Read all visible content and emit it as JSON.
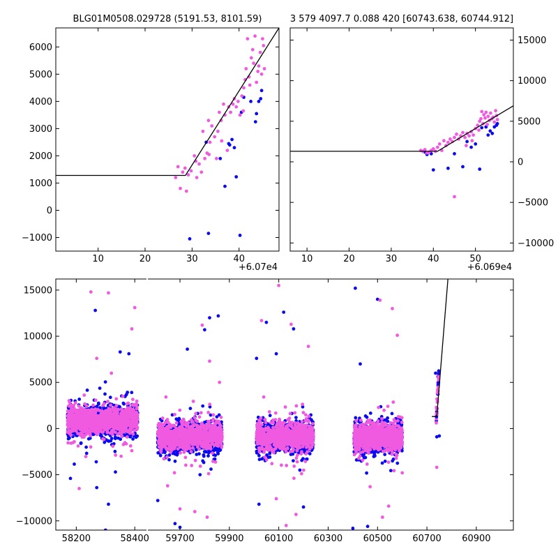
{
  "colors": {
    "band_blue": "#0b0bf0",
    "band_pink": "#f05ae0",
    "model_line": "#000000"
  },
  "chart_data": [
    {
      "id": "zoom1",
      "type": "scatter",
      "title": "BLG01M0508.029728 (5191.53, 8101.59)",
      "x_offset_label": "+6.07e4",
      "xlim": [
        1,
        48.5
      ],
      "ylim": [
        -1500,
        6700
      ],
      "xticks": [
        10,
        20,
        30,
        40
      ],
      "yticks": [
        -1000,
        0,
        1000,
        2000,
        3000,
        4000,
        5000,
        6000
      ],
      "ytick_side": "left",
      "model": [
        [
          1,
          1280
        ],
        [
          28.6,
          1280
        ],
        [
          48.5,
          6700
        ]
      ],
      "series": [
        {
          "name": "blue",
          "points": [
            [
              29.5,
              -1050
            ],
            [
              33.5,
              -850
            ],
            [
              40.2,
              -920
            ],
            [
              33,
              2500
            ],
            [
              36,
              1900
            ],
            [
              37,
              880
            ],
            [
              38,
              2400
            ],
            [
              39,
              2300
            ],
            [
              39.4,
              1230
            ],
            [
              40.5,
              3600
            ],
            [
              41,
              4150
            ],
            [
              42.5,
              4000
            ],
            [
              43.5,
              3250
            ],
            [
              43.7,
              3550
            ],
            [
              44.2,
              4000
            ],
            [
              44.6,
              4100
            ],
            [
              44.8,
              4400
            ],
            [
              38.5,
              2600
            ],
            [
              37.8,
              2450
            ]
          ]
        },
        {
          "name": "pink",
          "points": [
            [
              26.5,
              1200
            ],
            [
              27,
              1600
            ],
            [
              27.5,
              800
            ],
            [
              28,
              1400
            ],
            [
              28.5,
              1550
            ],
            [
              28.8,
              700
            ],
            [
              29.2,
              1300
            ],
            [
              29.8,
              1450
            ],
            [
              30.5,
              2000
            ],
            [
              30.8,
              1800
            ],
            [
              31,
              1200
            ],
            [
              31.5,
              1700
            ],
            [
              32,
              1400
            ],
            [
              32.3,
              2900
            ],
            [
              32.7,
              1900
            ],
            [
              33.2,
              2100
            ],
            [
              33.5,
              3300
            ],
            [
              33.8,
              2500
            ],
            [
              34.2,
              3100
            ],
            [
              34.8,
              2700
            ],
            [
              35.2,
              1900
            ],
            [
              35.8,
              3600
            ],
            [
              36.3,
              2550
            ],
            [
              36.7,
              3900
            ],
            [
              37,
              3500
            ],
            [
              37.5,
              2200
            ],
            [
              37.8,
              3800
            ],
            [
              38.2,
              3600
            ],
            [
              38.7,
              3900
            ],
            [
              39,
              4100
            ],
            [
              39.4,
              3800
            ],
            [
              39.8,
              4000
            ],
            [
              40.2,
              3500
            ],
            [
              40.6,
              4200
            ],
            [
              40.9,
              3650
            ],
            [
              41,
              4500
            ],
            [
              41.3,
              4800
            ],
            [
              41.5,
              5200
            ],
            [
              41.8,
              6300
            ],
            [
              42.1,
              4900
            ],
            [
              42.3,
              4600
            ],
            [
              42.6,
              5600
            ],
            [
              42.9,
              5900
            ],
            [
              43.1,
              5400
            ],
            [
              43.4,
              6400
            ],
            [
              43.7,
              4700
            ],
            [
              44,
              5100
            ],
            [
              44.2,
              5300
            ],
            [
              44.5,
              5800
            ],
            [
              44.8,
              5000
            ],
            [
              45,
              6300
            ],
            [
              45.2,
              6050
            ],
            [
              45.4,
              5200
            ],
            [
              36.2,
              3300
            ],
            [
              35.5,
              2900
            ],
            [
              33.6,
              2050
            ]
          ]
        }
      ]
    },
    {
      "id": "zoom2",
      "type": "scatter",
      "title": "3 579 4097.7 0.088 420 [60743.638, 60744.912]",
      "x_offset_label": "+6.069e4",
      "xlim": [
        6,
        59
      ],
      "ylim": [
        -11000,
        16500
      ],
      "xticks": [
        10,
        20,
        30,
        40,
        50
      ],
      "yticks": [
        -10000,
        -5000,
        0,
        5000,
        10000,
        15000
      ],
      "ytick_side": "right",
      "model": [
        [
          6,
          1300
        ],
        [
          41,
          1300
        ],
        [
          59,
          6900
        ]
      ],
      "series": [
        {
          "name": "blue",
          "points": [
            [
              38,
              1200
            ],
            [
              38.5,
              900
            ],
            [
              39.5,
              1000
            ],
            [
              40,
              -1000
            ],
            [
              43.5,
              -800
            ],
            [
              45,
              1000
            ],
            [
              47,
              -600
            ],
            [
              48,
              2500
            ],
            [
              49,
              1800
            ],
            [
              50,
              2200
            ],
            [
              51,
              -900
            ],
            [
              51.5,
              4200
            ],
            [
              52.5,
              4300
            ],
            [
              53,
              3300
            ],
            [
              53.5,
              3800
            ],
            [
              54,
              3500
            ],
            [
              54.5,
              4300
            ],
            [
              55,
              4500
            ],
            [
              55.2,
              4700
            ]
          ]
        },
        {
          "name": "pink",
          "points": [
            [
              37,
              1400
            ],
            [
              37.5,
              1300
            ],
            [
              38,
              1500
            ],
            [
              38.5,
              1100
            ],
            [
              39,
              1200
            ],
            [
              39.5,
              1400
            ],
            [
              40,
              1600
            ],
            [
              40.5,
              1300
            ],
            [
              41,
              1800
            ],
            [
              41.5,
              2200
            ],
            [
              42,
              1400
            ],
            [
              42.5,
              2600
            ],
            [
              43,
              2000
            ],
            [
              43.5,
              2400
            ],
            [
              44,
              2800
            ],
            [
              44.5,
              2500
            ],
            [
              45,
              3000
            ],
            [
              45,
              -4300
            ],
            [
              45.5,
              3400
            ],
            [
              46,
              2800
            ],
            [
              46.5,
              3200
            ],
            [
              47,
              3600
            ],
            [
              47.5,
              3000
            ],
            [
              48,
              3500
            ],
            [
              48.5,
              3200
            ],
            [
              49,
              3700
            ],
            [
              49.5,
              3300
            ],
            [
              50,
              4100
            ],
            [
              50.5,
              4500
            ],
            [
              50.8,
              3900
            ],
            [
              51,
              5000
            ],
            [
              51.3,
              5300
            ],
            [
              51.5,
              6200
            ],
            [
              51.8,
              4700
            ],
            [
              52,
              5800
            ],
            [
              52.3,
              5400
            ],
            [
              52.5,
              6100
            ],
            [
              52.8,
              4600
            ],
            [
              53,
              5600
            ],
            [
              53.3,
              5100
            ],
            [
              53.6,
              6000
            ],
            [
              53.9,
              5300
            ],
            [
              54.2,
              5500
            ],
            [
              54.5,
              4900
            ],
            [
              54.8,
              6300
            ],
            [
              55,
              5700
            ],
            [
              55.2,
              5200
            ],
            [
              49.2,
              2600
            ],
            [
              47.8,
              2000
            ]
          ]
        }
      ]
    },
    {
      "id": "full",
      "type": "scatter",
      "xlim_left": [
        58130,
        58440
      ],
      "xlim_right": [
        59570,
        61050
      ],
      "ylim": [
        -11000,
        16200
      ],
      "xticks_left": [
        58200,
        58400
      ],
      "xticks_right": [
        59700,
        59900,
        60100,
        60300,
        60500,
        60700,
        60900
      ],
      "yticks": [
        -10000,
        -5000,
        0,
        5000,
        10000,
        15000
      ],
      "model": [
        [
          60720,
          1300
        ],
        [
          60740,
          1300
        ],
        [
          60785,
          16200
        ]
      ],
      "seasons": [
        {
          "x0": 58170,
          "x1": 58410,
          "center": 900,
          "sigma": 650,
          "n": 1100
        },
        {
          "x0": 59610,
          "x1": 59870,
          "center": -850,
          "sigma": 650,
          "n": 1000
        },
        {
          "x0": 60010,
          "x1": 60240,
          "center": -850,
          "sigma": 650,
          "n": 1000
        },
        {
          "x0": 60405,
          "x1": 60600,
          "center": -900,
          "sigma": 650,
          "n": 950
        }
      ],
      "event": {
        "x0": 60738,
        "x1": 60748,
        "n": 50
      },
      "outliers": [
        {
          "name": "blue",
          "points": [
            [
              58265,
              12800
            ],
            [
              58300,
              -11000
            ],
            [
              58310,
              -8200
            ],
            [
              58270,
              -6400
            ],
            [
              58180,
              -5400
            ],
            [
              58350,
              8300
            ],
            [
              58380,
              8100
            ],
            [
              59730,
              8600
            ],
            [
              59820,
              12000
            ],
            [
              59855,
              12200
            ],
            [
              59800,
              10700
            ],
            [
              59610,
              -7800
            ],
            [
              59680,
              -10300
            ],
            [
              59700,
              -10700
            ],
            [
              60010,
              7600
            ],
            [
              60050,
              11500
            ],
            [
              60120,
              12600
            ],
            [
              60160,
              10800
            ],
            [
              60090,
              8100
            ],
            [
              60020,
              -8200
            ],
            [
              60200,
              -8500
            ],
            [
              60410,
              15200
            ],
            [
              60500,
              14000
            ],
            [
              60430,
              7000
            ],
            [
              60400,
              -10800
            ],
            [
              60460,
              -10600
            ],
            [
              60740,
              -900
            ],
            [
              60750,
              -800
            ],
            [
              60735,
              6000
            ]
          ]
        },
        {
          "name": "pink",
          "points": [
            [
              58250,
              14800
            ],
            [
              58310,
              14700
            ],
            [
              58400,
              13100
            ],
            [
              58390,
              10800
            ],
            [
              58270,
              7600
            ],
            [
              58320,
              6000
            ],
            [
              58210,
              -6500
            ],
            [
              58390,
              -2400
            ],
            [
              59790,
              11200
            ],
            [
              59820,
              7300
            ],
            [
              59860,
              5000
            ],
            [
              59700,
              -8700
            ],
            [
              59760,
              -9000
            ],
            [
              59810,
              -9600
            ],
            [
              59650,
              -6200
            ],
            [
              60030,
              11700
            ],
            [
              60100,
              15500
            ],
            [
              60150,
              11300
            ],
            [
              60220,
              8900
            ],
            [
              60130,
              -10500
            ],
            [
              60170,
              -9300
            ],
            [
              60090,
              -7600
            ],
            [
              60510,
              13900
            ],
            [
              60560,
              13000
            ],
            [
              60580,
              10100
            ],
            [
              60470,
              -6300
            ],
            [
              60545,
              -8400
            ],
            [
              60520,
              -9600
            ],
            [
              60600,
              -4800
            ],
            [
              60740,
              -4200
            ]
          ]
        }
      ]
    }
  ]
}
